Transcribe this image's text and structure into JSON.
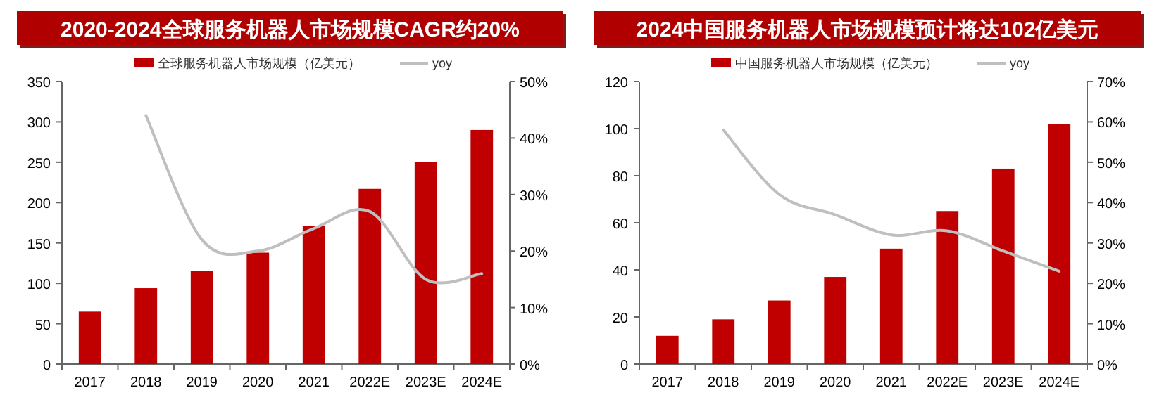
{
  "chart_data": [
    {
      "type": "bar",
      "title": "2020-2024全球服务机器人市场规模CAGR约20%",
      "categories": [
        "2017",
        "2018",
        "2019",
        "2020",
        "2021",
        "2022E",
        "2023E",
        "2024E"
      ],
      "series": [
        {
          "name": "全球服务机器人市场规模（亿美元）",
          "color": "#c00000",
          "values": [
            65,
            94,
            115,
            138,
            171,
            217,
            250,
            290
          ]
        },
        {
          "name": "yoy",
          "type": "line",
          "axis": "y2",
          "color": "#bfbfbf",
          "values": [
            null,
            44,
            22,
            20,
            24,
            27,
            15,
            16
          ]
        }
      ],
      "ylim": [
        0,
        350
      ],
      "yticks": [
        0,
        50,
        100,
        150,
        200,
        250,
        300,
        350
      ],
      "y2lim": [
        0,
        50
      ],
      "y2ticks": [
        {
          "value": 0,
          "label": "0%"
        },
        {
          "value": 10,
          "label": "10%"
        },
        {
          "value": 20,
          "label": "20%"
        },
        {
          "value": 30,
          "label": "30%"
        },
        {
          "value": 40,
          "label": "40%"
        },
        {
          "value": 50,
          "label": "50%"
        }
      ],
      "legend": "top",
      "grid": false
    },
    {
      "type": "bar",
      "title": "2024中国服务机器人市场规模预计将达102亿美元",
      "categories": [
        "2017",
        "2018",
        "2019",
        "2020",
        "2021",
        "2022E",
        "2023E",
        "2024E"
      ],
      "series": [
        {
          "name": "中国服务机器人市场规模（亿美元）",
          "color": "#c00000",
          "values": [
            12,
            19,
            27,
            37,
            49,
            65,
            83,
            102
          ]
        },
        {
          "name": "yoy",
          "type": "line",
          "axis": "y2",
          "color": "#bfbfbf",
          "values": [
            null,
            58,
            42,
            37,
            32,
            33,
            28,
            23
          ]
        }
      ],
      "ylim": [
        0,
        120
      ],
      "yticks": [
        0,
        20,
        40,
        60,
        80,
        100,
        120
      ],
      "y2lim": [
        0,
        70
      ],
      "y2ticks": [
        {
          "value": 0,
          "label": "0%"
        },
        {
          "value": 10,
          "label": "10%"
        },
        {
          "value": 20,
          "label": "20%"
        },
        {
          "value": 30,
          "label": "30%"
        },
        {
          "value": 40,
          "label": "40%"
        },
        {
          "value": 50,
          "label": "50%"
        },
        {
          "value": 60,
          "label": "60%"
        },
        {
          "value": 70,
          "label": "70%"
        }
      ],
      "legend": "top",
      "grid": false
    }
  ]
}
